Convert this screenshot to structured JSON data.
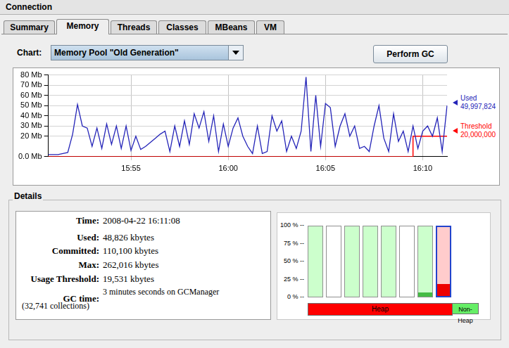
{
  "window_title": "Connection",
  "tabs": [
    "Summary",
    "Memory",
    "Threads",
    "Classes",
    "MBeans",
    "VM"
  ],
  "selected_tab": "Memory",
  "chart_selector": {
    "label": "Chart:",
    "value": "Memory Pool \"Old Generation\""
  },
  "button": "Perform GC",
  "chart_data": {
    "type": "line",
    "categories": [
      null,
      null,
      null,
      null,
      null,
      null,
      null,
      null,
      null,
      null,
      null,
      null,
      null,
      null,
      null,
      null,
      null,
      "15:55",
      null,
      null,
      null,
      null,
      null,
      null,
      null,
      null,
      null,
      null,
      null,
      null,
      null,
      null,
      null,
      null,
      null,
      null,
      null,
      "16:00",
      null,
      null,
      null,
      null,
      null,
      null,
      null,
      null,
      null,
      null,
      null,
      null,
      null,
      null,
      null,
      null,
      null,
      null,
      null,
      "16:05",
      null,
      null,
      null,
      null,
      null,
      null,
      null,
      null,
      null,
      null,
      null,
      null,
      null,
      null,
      null,
      null,
      null,
      null,
      null,
      "16:10",
      null,
      null,
      null,
      null,
      null
    ],
    "series": [
      {
        "name": "Used",
        "color": "#2424b8",
        "line_style": "solid",
        "current": "49,997,824",
        "values": [
          2,
          2,
          2,
          3,
          4,
          22,
          51,
          30,
          28,
          10,
          28,
          8,
          32,
          12,
          30,
          8,
          30,
          6,
          20,
          7,
          10,
          14,
          18,
          22,
          25,
          5,
          30,
          10,
          35,
          12,
          42,
          28,
          44,
          15,
          40,
          5,
          32,
          10,
          28,
          38,
          20,
          10,
          3,
          30,
          3,
          5,
          40,
          25,
          35,
          5,
          20,
          8,
          25,
          78,
          5,
          60,
          10,
          52,
          48,
          10,
          30,
          42,
          20,
          30,
          8,
          10,
          5,
          30,
          50,
          18,
          5,
          42,
          15,
          25,
          5,
          30,
          8,
          25,
          30,
          20,
          38,
          5,
          50
        ]
      },
      {
        "name": "Threshold",
        "color": "#ff0000",
        "line_style": "step",
        "current": "20,000,000",
        "values": [
          0,
          0,
          0,
          0,
          0,
          0,
          0,
          0,
          0,
          0,
          0,
          0,
          0,
          0,
          0,
          0,
          0,
          0,
          0,
          0,
          0,
          0,
          0,
          0,
          0,
          0,
          0,
          0,
          0,
          0,
          0,
          0,
          0,
          0,
          0,
          0,
          0,
          0,
          0,
          0,
          0,
          0,
          0,
          0,
          0,
          0,
          0,
          0,
          0,
          0,
          0,
          0,
          0,
          0,
          0,
          0,
          0,
          0,
          0,
          0,
          0,
          0,
          0,
          0,
          0,
          0,
          0,
          0,
          0,
          0,
          0,
          0,
          0,
          0,
          0,
          20,
          20,
          20,
          20,
          20,
          20,
          20,
          20
        ]
      }
    ],
    "ylim": [
      0,
      80
    ],
    "yticks": [
      {
        "value": 0,
        "label": "0.0 Mb"
      },
      {
        "value": 20,
        "label": "20 Mb"
      },
      {
        "value": 30,
        "label": "30 Mb"
      },
      {
        "value": 40,
        "label": "40 Mb"
      },
      {
        "value": 50,
        "label": "50 Mb"
      },
      {
        "value": 60,
        "label": "60 Mb"
      },
      {
        "value": 70,
        "label": "70 Mb"
      },
      {
        "value": 80,
        "label": "80 Mb"
      }
    ],
    "grid": true
  },
  "details": {
    "title": "Details",
    "fields": [
      {
        "label": "Time:",
        "value": "2008-04-22 16:11:08"
      },
      {
        "label": "Used:",
        "value": "48,826 kbytes"
      },
      {
        "label": "Committed:",
        "value": "110,100 kbytes"
      },
      {
        "label": "Max:",
        "value": "262,016 kbytes"
      },
      {
        "label": "Usage Threshold:",
        "value": "19,531 kbytes"
      }
    ],
    "gc": {
      "label": "GC time:",
      "value": "3 minutes seconds on GCManager",
      "collections": "(32,741 collections)"
    }
  },
  "usage_bars": {
    "values": [
      0,
      0,
      0,
      0,
      0,
      0,
      6,
      17
    ],
    "colors": [
      "#66cc66",
      "#66cc66",
      "#66cc66",
      "#66cc66",
      "#66cc66",
      "#66cc66",
      "#44bb44",
      "#ee0000"
    ],
    "ylim": [
      0,
      100
    ],
    "yticks": [
      {
        "value": 0,
        "label": "0 %"
      },
      {
        "value": 25,
        "label": "25 %"
      },
      {
        "value": 50,
        "label": "50 %"
      },
      {
        "value": 75,
        "label": "75 %"
      },
      {
        "value": 100,
        "label": "100 %"
      }
    ],
    "groups": [
      {
        "label": "Heap",
        "color": "#ff0000"
      },
      {
        "label": "Non-Heap",
        "color": "#66ee66"
      }
    ]
  }
}
